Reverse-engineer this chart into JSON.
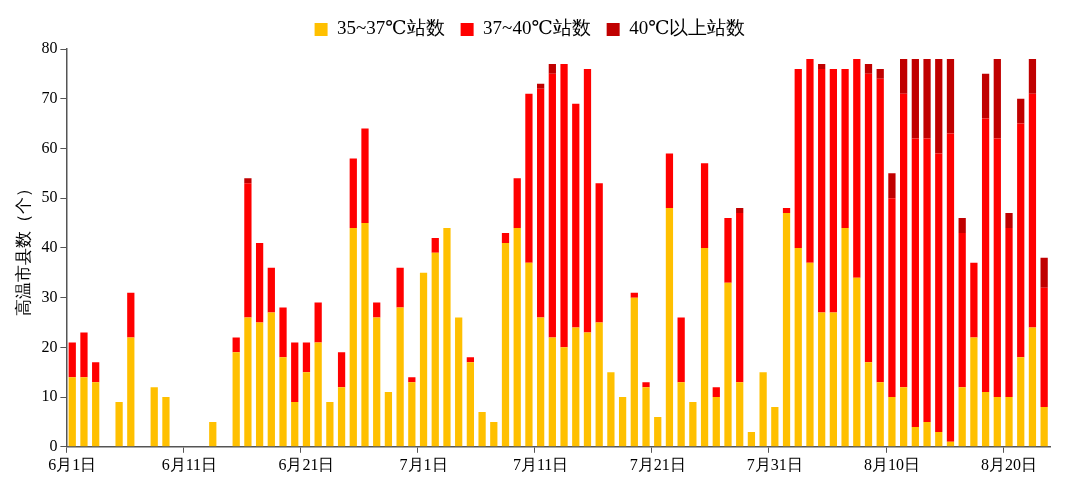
{
  "chart_data": {
    "type": "bar",
    "stacked": true,
    "ylabel": "高温市县数（个）",
    "legend": "top",
    "grid": false,
    "categories": [
      "6月1日",
      null,
      null,
      null,
      null,
      null,
      null,
      null,
      null,
      null,
      "6月11日",
      null,
      null,
      null,
      null,
      null,
      null,
      null,
      null,
      null,
      "6月21日",
      null,
      null,
      null,
      null,
      null,
      null,
      null,
      null,
      null,
      "7月1日",
      null,
      null,
      null,
      null,
      null,
      null,
      null,
      null,
      null,
      "7月11日",
      null,
      null,
      null,
      null,
      null,
      null,
      null,
      null,
      null,
      "7月21日",
      null,
      null,
      null,
      null,
      null,
      null,
      null,
      null,
      null,
      "7月31日",
      null,
      null,
      null,
      null,
      null,
      null,
      null,
      null,
      null,
      "8月10日",
      null,
      null,
      null,
      null,
      null,
      null,
      null,
      null,
      null,
      "8月20日",
      null,
      null,
      null
    ],
    "ylim": [
      0,
      80
    ],
    "yticks": [
      0,
      10,
      20,
      30,
      40,
      50,
      60,
      70,
      80
    ],
    "series": [
      {
        "name": "35~37℃站数",
        "color": "#ffc000",
        "values": [
          14,
          14,
          13,
          0,
          9,
          22,
          0,
          12,
          10,
          0,
          0,
          0,
          5,
          0,
          19,
          26,
          25,
          27,
          18,
          9,
          15,
          21,
          9,
          12,
          44,
          45,
          26,
          11,
          28,
          13,
          35,
          39,
          44,
          26,
          17,
          7,
          5,
          41,
          44,
          37,
          26,
          22,
          20,
          24,
          23,
          25,
          15,
          10,
          30,
          12,
          6,
          48,
          13,
          9,
          40,
          10,
          33,
          13,
          3,
          15,
          8,
          47,
          40,
          37,
          27,
          27,
          44,
          34,
          17,
          13,
          10,
          12,
          4,
          5,
          3,
          1,
          12,
          22,
          11,
          10,
          10,
          18,
          24,
          8
        ]
      },
      {
        "name": "37~40℃站数",
        "color": "#ff0000",
        "values": [
          7,
          9,
          4,
          0,
          0,
          9,
          0,
          0,
          0,
          0,
          0,
          0,
          0,
          0,
          3,
          27,
          16,
          9,
          10,
          12,
          6,
          8,
          0,
          7,
          14,
          19,
          3,
          0,
          8,
          1,
          0,
          3,
          0,
          0,
          1,
          0,
          0,
          2,
          10,
          34,
          46,
          53,
          57,
          45,
          53,
          28,
          0,
          0,
          1,
          1,
          0,
          11,
          13,
          0,
          17,
          2,
          13,
          34,
          0,
          0,
          0,
          1,
          36,
          41,
          49,
          49,
          32,
          44,
          58,
          61,
          40,
          59,
          58,
          57,
          56,
          62,
          31,
          15,
          55,
          52,
          34,
          47,
          47,
          24
        ]
      },
      {
        "name": "40℃以上站数",
        "color": "#c00000",
        "values": [
          0,
          0,
          0,
          0,
          0,
          0,
          0,
          0,
          0,
          0,
          0,
          0,
          0,
          0,
          0,
          1,
          0,
          0,
          0,
          0,
          0,
          0,
          0,
          0,
          0,
          0,
          0,
          0,
          0,
          0,
          0,
          0,
          0,
          0,
          0,
          0,
          0,
          0,
          0,
          0,
          1,
          2,
          0,
          0,
          0,
          0,
          0,
          0,
          0,
          0,
          0,
          0,
          0,
          0,
          0,
          0,
          0,
          1,
          0,
          0,
          0,
          0,
          0,
          0,
          1,
          0,
          0,
          0,
          2,
          2,
          5,
          7,
          16,
          16,
          19,
          15,
          3,
          0,
          9,
          16,
          3,
          5,
          7,
          6
        ]
      }
    ]
  }
}
